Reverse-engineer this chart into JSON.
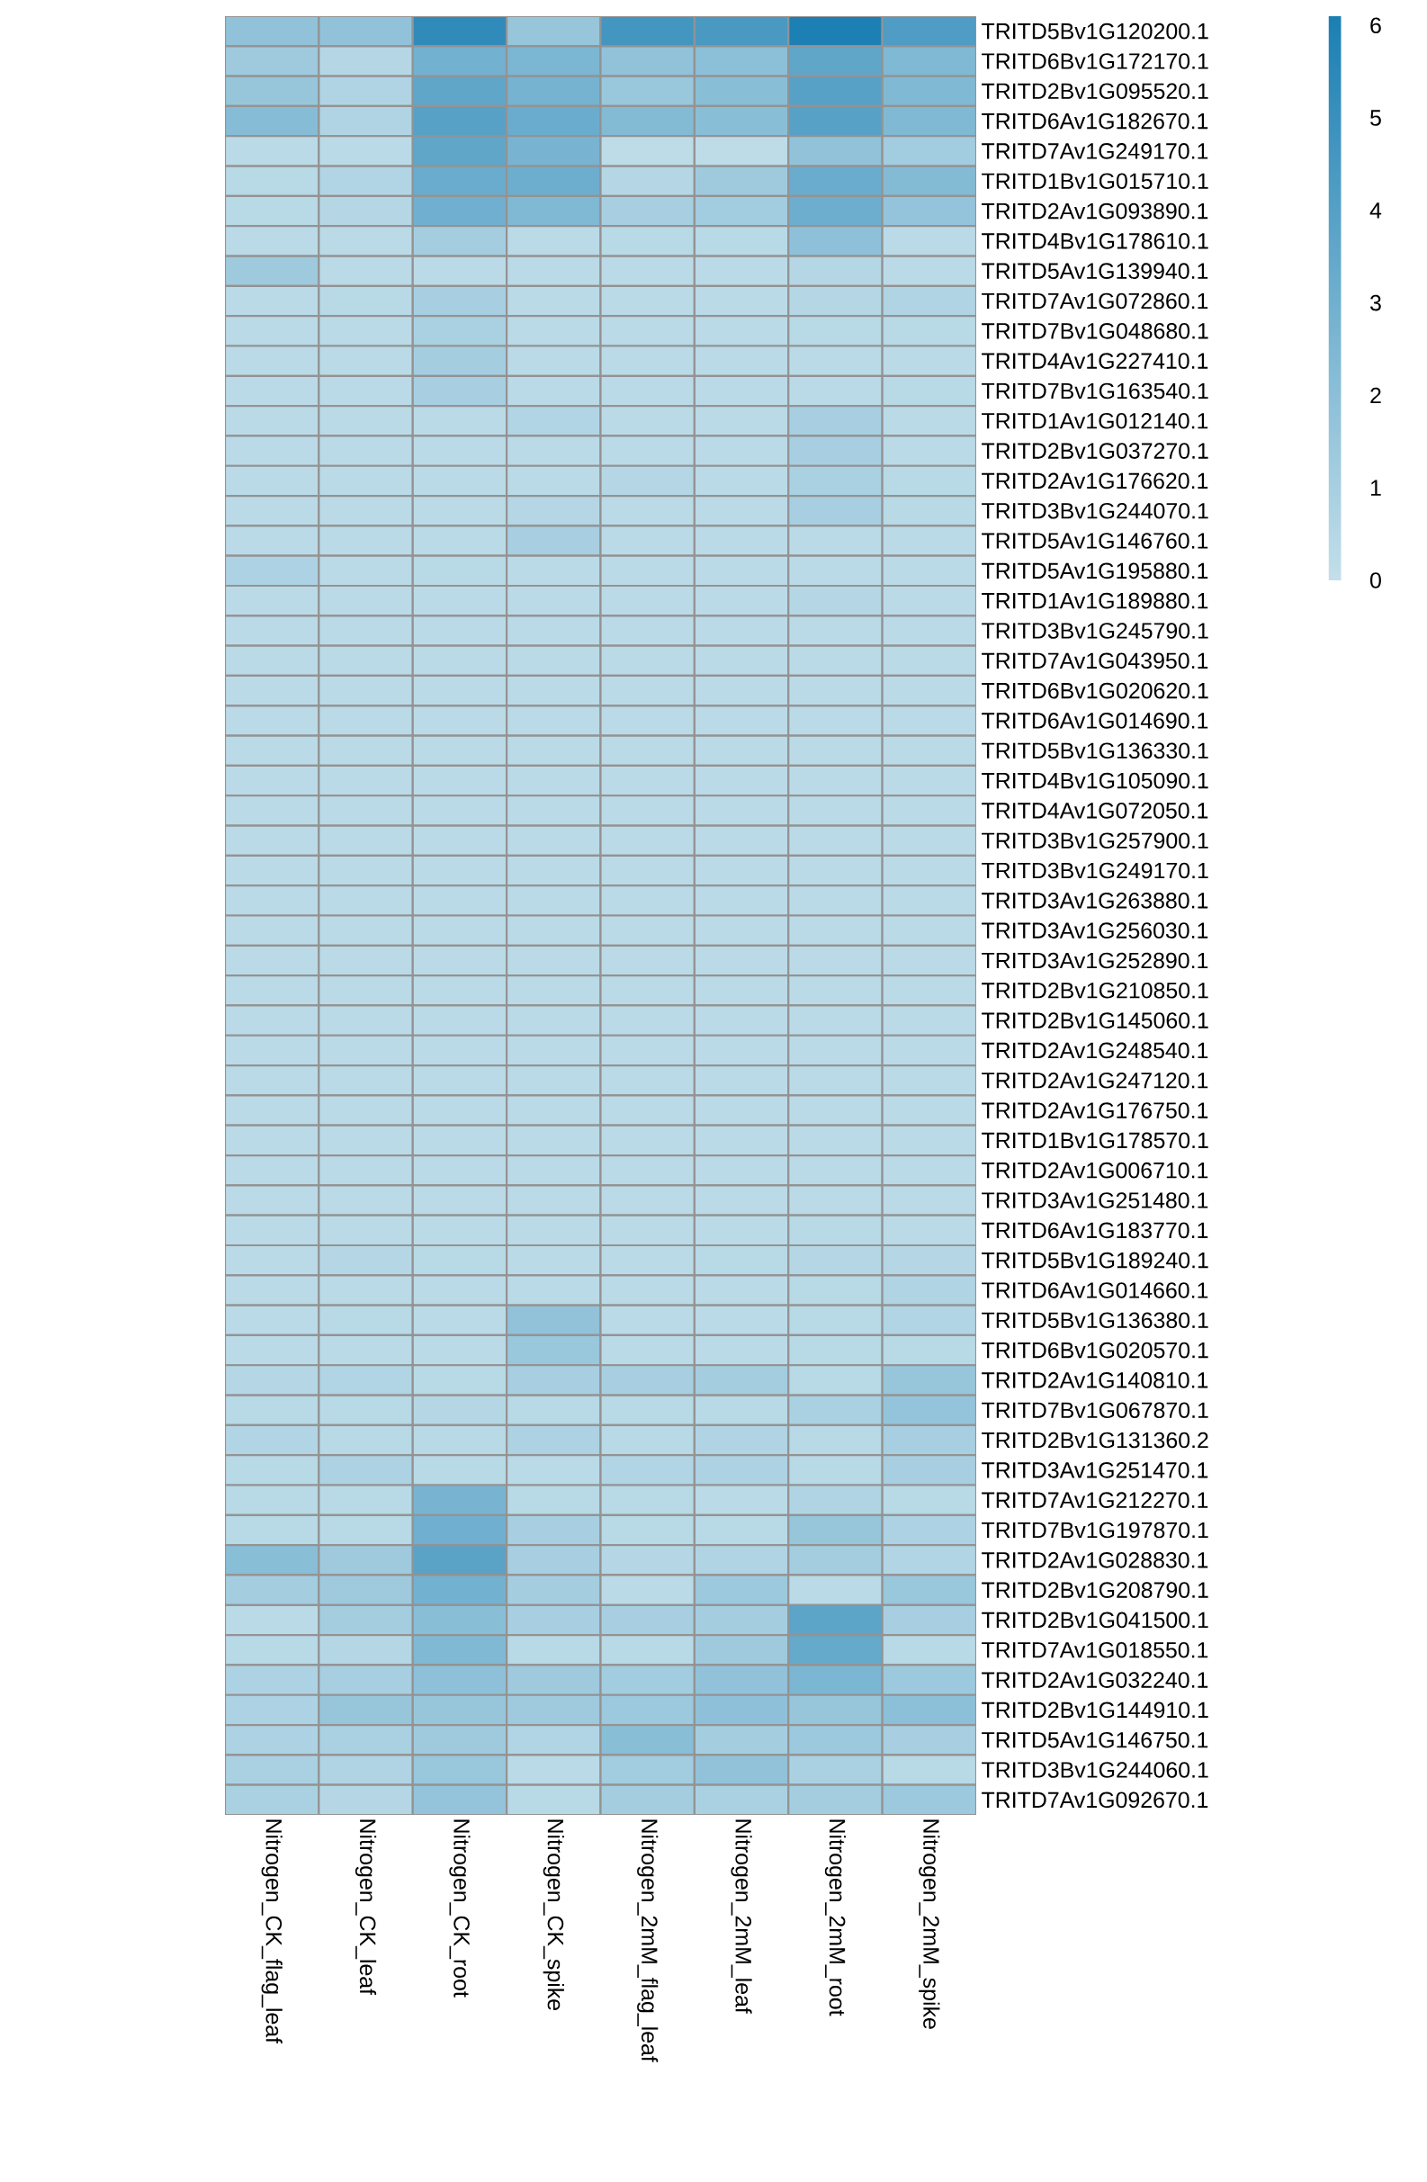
{
  "chart_data": {
    "type": "heatmap",
    "categories": [
      "Nitrogen_CK_flag_leaf",
      "Nitrogen_CK_leaf",
      "Nitrogen_CK_root",
      "Nitrogen_CK_spike",
      "Nitrogen_2mM_flag_leaf",
      "Nitrogen_2mM_leaf",
      "Nitrogen_2mM_root",
      "Nitrogen_2mM_spike"
    ],
    "y_categories": [
      "TRITD5Bv1G120200.1",
      "TRITD6Bv1G172170.1",
      "TRITD2Bv1G095520.1",
      "TRITD6Av1G182670.1",
      "TRITD7Av1G249170.1",
      "TRITD1Bv1G015710.1",
      "TRITD2Av1G093890.1",
      "TRITD4Bv1G178610.1",
      "TRITD5Av1G139940.1",
      "TRITD7Av1G072860.1",
      "TRITD7Bv1G048680.1",
      "TRITD4Av1G227410.1",
      "TRITD7Bv1G163540.1",
      "TRITD1Av1G012140.1",
      "TRITD2Bv1G037270.1",
      "TRITD2Av1G176620.1",
      "TRITD3Bv1G244070.1",
      "TRITD5Av1G146760.1",
      "TRITD5Av1G195880.1",
      "TRITD1Av1G189880.1",
      "TRITD3Bv1G245790.1",
      "TRITD7Av1G043950.1",
      "TRITD6Bv1G020620.1",
      "TRITD6Av1G014690.1",
      "TRITD5Bv1G136330.1",
      "TRITD4Bv1G105090.1",
      "TRITD4Av1G072050.1",
      "TRITD3Bv1G257900.1",
      "TRITD3Bv1G249170.1",
      "TRITD3Av1G263880.1",
      "TRITD3Av1G256030.1",
      "TRITD3Av1G252890.1",
      "TRITD2Bv1G210850.1",
      "TRITD2Bv1G145060.1",
      "TRITD2Av1G248540.1",
      "TRITD2Av1G247120.1",
      "TRITD2Av1G176750.1",
      "TRITD1Bv1G178570.1",
      "TRITD2Av1G006710.1",
      "TRITD3Av1G251480.1",
      "TRITD6Av1G183770.1",
      "TRITD5Bv1G189240.1",
      "TRITD6Av1G014660.1",
      "TRITD5Bv1G136380.1",
      "TRITD6Bv1G020570.1",
      "TRITD2Av1G140810.1",
      "TRITD7Bv1G067870.1",
      "TRITD2Bv1G131360.2",
      "TRITD3Av1G251470.1",
      "TRITD7Av1G212270.1",
      "TRITD7Bv1G197870.1",
      "TRITD2Av1G028830.1",
      "TRITD2Bv1G208790.1",
      "TRITD2Bv1G041500.1",
      "TRITD7Av1G018550.1",
      "TRITD2Av1G032240.1",
      "TRITD2Bv1G144910.1",
      "TRITD5Av1G146750.1",
      "TRITD3Bv1G244060.1",
      "TRITD7Av1G092670.1"
    ],
    "cells": [
      [
        1.8,
        1.8,
        5.3,
        1.6,
        4.6,
        4.4,
        6.0,
        4.2
      ],
      [
        1.3,
        0.5,
        2.9,
        2.6,
        1.8,
        2.0,
        3.6,
        2.4
      ],
      [
        1.6,
        0.7,
        3.6,
        2.8,
        1.5,
        2.1,
        3.9,
        2.4
      ],
      [
        2.2,
        0.7,
        3.9,
        3.2,
        2.3,
        2.1,
        3.9,
        2.4
      ],
      [
        0.3,
        0.3,
        3.6,
        2.7,
        0.2,
        0.2,
        1.8,
        1.2
      ],
      [
        0.4,
        0.6,
        3.2,
        3.1,
        0.5,
        1.3,
        3.2,
        2.3
      ],
      [
        0.4,
        0.5,
        3.0,
        2.4,
        1.0,
        1.2,
        3.1,
        1.7
      ],
      [
        0.3,
        0.3,
        1.1,
        0.3,
        0.4,
        0.4,
        1.9,
        0.3
      ],
      [
        1.3,
        0.3,
        0.3,
        0.3,
        0.3,
        0.3,
        0.5,
        0.3
      ],
      [
        0.3,
        0.4,
        1.0,
        0.3,
        0.3,
        0.3,
        0.5,
        0.7
      ],
      [
        0.3,
        0.3,
        0.9,
        0.3,
        0.3,
        0.3,
        0.4,
        0.4
      ],
      [
        0.3,
        0.3,
        1.1,
        0.3,
        0.3,
        0.3,
        0.3,
        0.3
      ],
      [
        0.3,
        0.3,
        1.0,
        0.3,
        0.3,
        0.3,
        0.3,
        0.4
      ],
      [
        0.3,
        0.3,
        0.3,
        0.6,
        0.3,
        0.3,
        1.0,
        0.3
      ],
      [
        0.3,
        0.3,
        0.3,
        0.3,
        0.3,
        0.3,
        1.0,
        0.3
      ],
      [
        0.3,
        0.3,
        0.3,
        0.3,
        0.5,
        0.3,
        0.9,
        0.4
      ],
      [
        0.3,
        0.3,
        0.3,
        0.5,
        0.3,
        0.3,
        1.0,
        0.4
      ],
      [
        0.3,
        0.3,
        0.3,
        1.0,
        0.3,
        0.3,
        0.3,
        0.3
      ],
      [
        0.8,
        0.3,
        0.4,
        0.3,
        0.3,
        0.3,
        0.3,
        0.3
      ],
      [
        0.3,
        0.3,
        0.3,
        0.3,
        0.3,
        0.3,
        0.5,
        0.3
      ],
      [
        0.3,
        0.3,
        0.3,
        0.3,
        0.3,
        0.3,
        0.3,
        0.3
      ],
      [
        0.3,
        0.3,
        0.3,
        0.3,
        0.3,
        0.3,
        0.3,
        0.3
      ],
      [
        0.3,
        0.3,
        0.3,
        0.3,
        0.3,
        0.3,
        0.3,
        0.3
      ],
      [
        0.3,
        0.3,
        0.3,
        0.3,
        0.3,
        0.3,
        0.3,
        0.3
      ],
      [
        0.3,
        0.3,
        0.3,
        0.3,
        0.3,
        0.3,
        0.3,
        0.3
      ],
      [
        0.3,
        0.3,
        0.3,
        0.3,
        0.3,
        0.3,
        0.3,
        0.3
      ],
      [
        0.3,
        0.3,
        0.3,
        0.3,
        0.3,
        0.3,
        0.3,
        0.3
      ],
      [
        0.3,
        0.3,
        0.3,
        0.3,
        0.3,
        0.3,
        0.3,
        0.3
      ],
      [
        0.3,
        0.3,
        0.3,
        0.3,
        0.3,
        0.3,
        0.3,
        0.3
      ],
      [
        0.3,
        0.3,
        0.3,
        0.3,
        0.3,
        0.3,
        0.3,
        0.3
      ],
      [
        0.3,
        0.3,
        0.3,
        0.3,
        0.3,
        0.3,
        0.3,
        0.3
      ],
      [
        0.3,
        0.3,
        0.3,
        0.3,
        0.3,
        0.3,
        0.3,
        0.3
      ],
      [
        0.3,
        0.3,
        0.3,
        0.3,
        0.3,
        0.3,
        0.3,
        0.3
      ],
      [
        0.3,
        0.3,
        0.3,
        0.3,
        0.3,
        0.3,
        0.3,
        0.3
      ],
      [
        0.3,
        0.3,
        0.3,
        0.3,
        0.3,
        0.3,
        0.3,
        0.3
      ],
      [
        0.3,
        0.3,
        0.3,
        0.3,
        0.3,
        0.3,
        0.3,
        0.3
      ],
      [
        0.3,
        0.3,
        0.3,
        0.3,
        0.3,
        0.3,
        0.3,
        0.3
      ],
      [
        0.3,
        0.3,
        0.3,
        0.3,
        0.3,
        0.3,
        0.3,
        0.3
      ],
      [
        0.3,
        0.3,
        0.3,
        0.3,
        0.3,
        0.3,
        0.3,
        0.3
      ],
      [
        0.3,
        0.3,
        0.3,
        0.3,
        0.3,
        0.3,
        0.3,
        0.3
      ],
      [
        0.3,
        0.3,
        0.3,
        0.3,
        0.3,
        0.3,
        0.4,
        0.3
      ],
      [
        0.3,
        0.5,
        0.4,
        0.3,
        0.3,
        0.4,
        0.5,
        0.5
      ],
      [
        0.3,
        0.3,
        0.3,
        0.3,
        0.3,
        0.3,
        0.4,
        0.7
      ],
      [
        0.3,
        0.4,
        0.3,
        1.8,
        0.3,
        0.3,
        0.4,
        0.6
      ],
      [
        0.3,
        0.3,
        0.3,
        1.5,
        0.3,
        0.3,
        0.4,
        0.4
      ],
      [
        0.5,
        0.6,
        0.4,
        1.0,
        1.0,
        1.1,
        0.4,
        1.6
      ],
      [
        0.4,
        0.4,
        0.5,
        0.4,
        0.4,
        0.4,
        0.9,
        1.7
      ],
      [
        0.6,
        0.4,
        0.4,
        0.8,
        0.4,
        0.7,
        0.4,
        1.0
      ],
      [
        0.4,
        0.8,
        0.4,
        0.3,
        0.6,
        0.8,
        0.4,
        1.0
      ],
      [
        0.4,
        0.4,
        2.7,
        0.4,
        0.4,
        0.3,
        0.7,
        0.4
      ],
      [
        0.4,
        0.4,
        3.0,
        1.0,
        0.4,
        0.4,
        1.6,
        0.8
      ],
      [
        2.1,
        1.3,
        3.8,
        1.0,
        0.5,
        0.7,
        1.1,
        0.6
      ],
      [
        1.1,
        1.3,
        2.9,
        1.1,
        0.3,
        1.4,
        0.3,
        1.5
      ],
      [
        0.3,
        1.1,
        2.1,
        1.0,
        1.0,
        1.1,
        3.7,
        1.0
      ],
      [
        0.4,
        0.5,
        2.4,
        0.4,
        0.4,
        1.3,
        3.4,
        0.4
      ],
      [
        0.8,
        1.0,
        1.9,
        1.3,
        1.2,
        1.8,
        2.6,
        1.4
      ],
      [
        0.8,
        1.6,
        1.6,
        1.3,
        1.4,
        1.9,
        1.6,
        2.0
      ],
      [
        0.8,
        0.9,
        1.3,
        0.6,
        2.1,
        1.1,
        1.4,
        1.0
      ],
      [
        0.9,
        0.7,
        1.5,
        0.3,
        1.2,
        1.8,
        0.9,
        0.4
      ],
      [
        0.9,
        0.5,
        1.7,
        0.4,
        1.1,
        0.9,
        1.1,
        1.4
      ]
    ],
    "clim": [
      0,
      6.1
    ],
    "cticks": [
      0,
      1,
      2,
      3,
      4,
      5,
      6
    ]
  }
}
